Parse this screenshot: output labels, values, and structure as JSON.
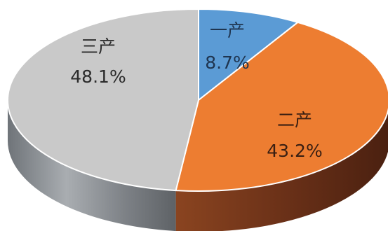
{
  "chart_data": {
    "type": "pie",
    "style": "3d",
    "title": "",
    "slices": [
      {
        "label": "一产",
        "value": 8.7,
        "display": "8.7%",
        "color": "#5B9BD5",
        "side_color": "#3C6E9B",
        "label_color": "#1f3550"
      },
      {
        "label": "二产",
        "value": 43.2,
        "display": "43.2%",
        "color": "#ED7D31",
        "side_color": "#7B3A1C",
        "label_color": "#3a1f12"
      },
      {
        "label": "三产",
        "value": 48.1,
        "display": "48.1%",
        "color": "#C9C9C9",
        "side_color": "#8A8E92",
        "label_color": "#2b2b2b"
      }
    ]
  }
}
